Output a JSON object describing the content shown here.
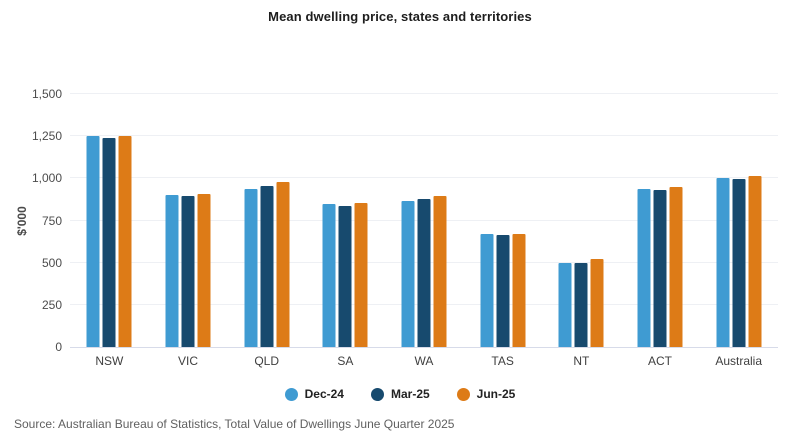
{
  "title": "Mean dwelling price, states and territories",
  "source": "Source: Australian Bureau of Statistics, Total Value of Dwellings June Quarter 2025",
  "colors": {
    "series_dec24": "#3f9bd2",
    "series_mar25": "#174a6e",
    "series_jun25": "#dd7b17",
    "gridline": "#eef0f4",
    "axis_baseline": "#d7dbe9",
    "title_text": "#1d1d1d",
    "tick_text": "#4c4c4c",
    "source_text": "#606060"
  },
  "chart_data": {
    "type": "bar",
    "title": "Mean dwelling price, states and territories",
    "categories": [
      "NSW",
      "VIC",
      "QLD",
      "SA",
      "WA",
      "TAS",
      "NT",
      "ACT",
      "Australia"
    ],
    "series": [
      {
        "name": "Dec-24",
        "color": "#3f9bd2",
        "values": [
          1252,
          900,
          935,
          846,
          865,
          668,
          497,
          940,
          1000
        ]
      },
      {
        "name": "Mar-25",
        "color": "#174a6e",
        "values": [
          1242,
          895,
          957,
          839,
          876,
          666,
          500,
          934,
          995
        ]
      },
      {
        "name": "Jun-25",
        "color": "#dd7b17",
        "values": [
          1254,
          908,
          978,
          852,
          895,
          669,
          521,
          946,
          1013
        ]
      }
    ],
    "xlabel": "",
    "ylabel": "$'000",
    "ylim": [
      0,
      1500
    ],
    "ytick_step": 250,
    "yticks": [
      "0",
      "250",
      "500",
      "750",
      "1,000",
      "1,250",
      "1,500"
    ],
    "grid": true,
    "legend_position": "bottom"
  }
}
